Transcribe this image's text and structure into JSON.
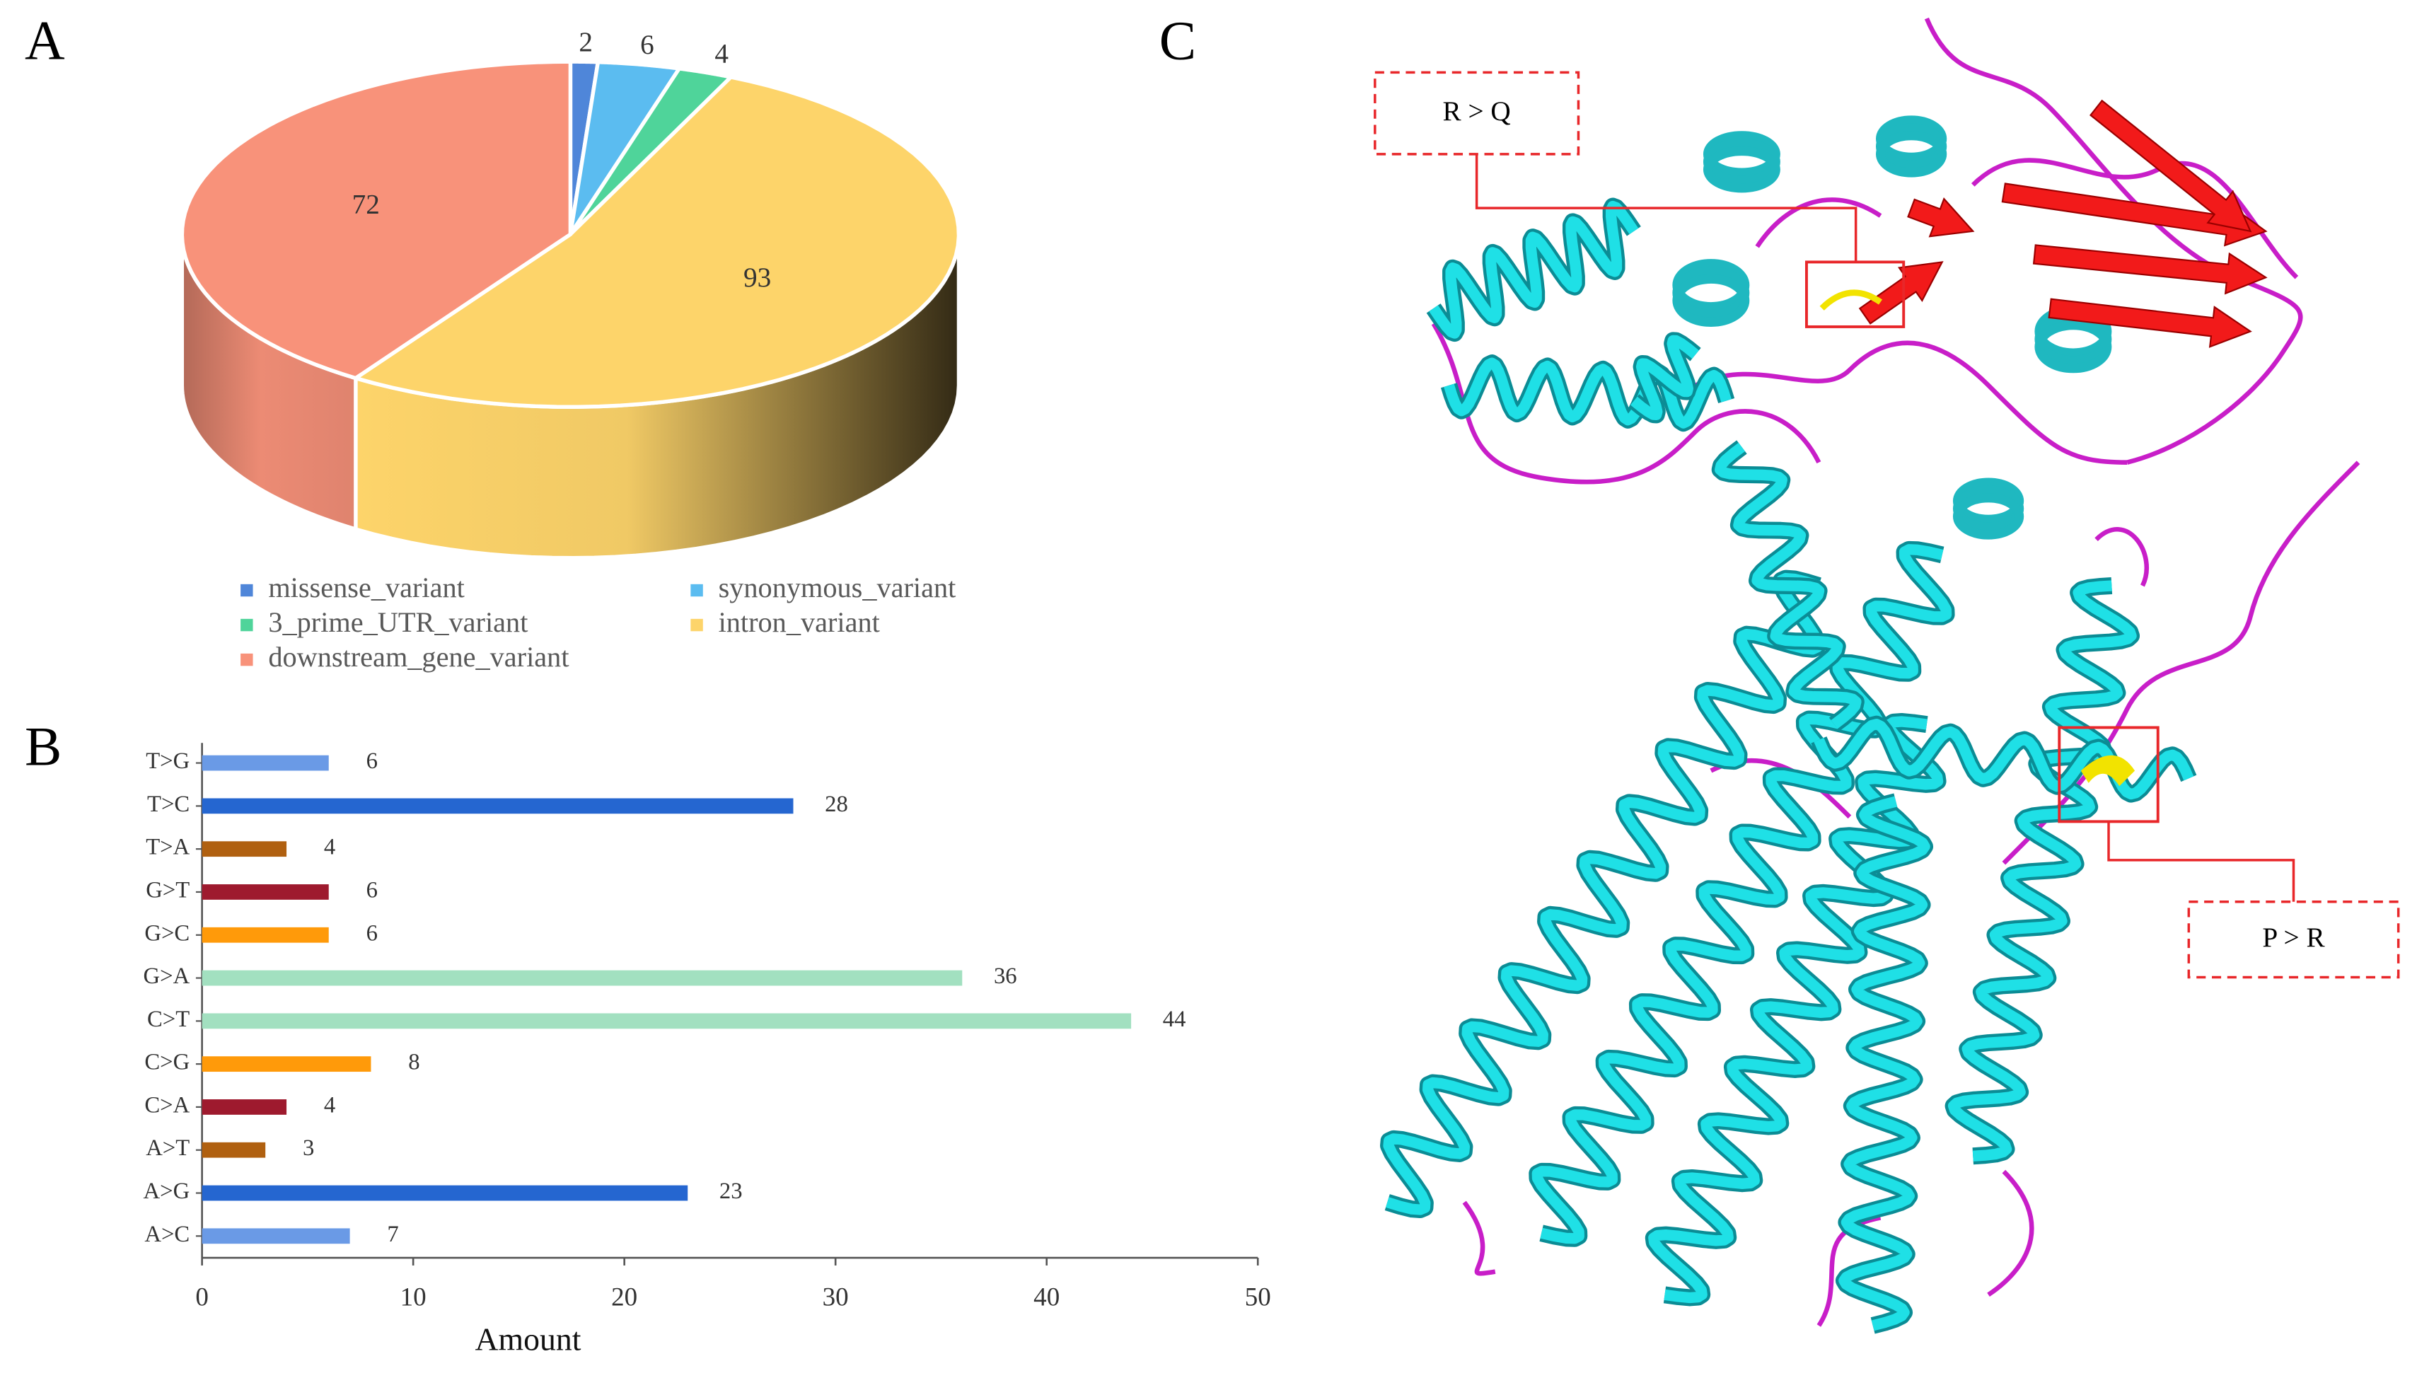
{
  "chart_data": [
    {
      "type": "pie",
      "panel": "A",
      "categories": [
        "missense_variant",
        "synonymous_variant",
        "3_prime_UTR_variant",
        "intron_variant",
        "downstream_gene_variant"
      ],
      "values": [
        2,
        6,
        4,
        93,
        72
      ],
      "colors": [
        "#4f86d9",
        "#5bbcf0",
        "#4fd49a",
        "#fdd46a",
        "#f8927a"
      ],
      "legend": "bottom"
    },
    {
      "type": "bar",
      "panel": "B",
      "orientation": "horizontal",
      "categories": [
        "T>G",
        "T>C",
        "T>A",
        "G>T",
        "G>C",
        "G>A",
        "C>T",
        "C>G",
        "C>A",
        "A>T",
        "A>G",
        "A>C"
      ],
      "values": [
        6,
        28,
        4,
        6,
        6,
        36,
        44,
        8,
        4,
        3,
        23,
        7
      ],
      "colors": [
        "#6a9ae6",
        "#2566d0",
        "#b06010",
        "#9e1a2e",
        "#ff9a0a",
        "#a2e0c0",
        "#a2e0c0",
        "#ff9a0a",
        "#9e1a2e",
        "#b06010",
        "#2566d0",
        "#6a9ae6"
      ],
      "xlim": [
        0,
        50
      ],
      "xticks": [
        0,
        10,
        20,
        30,
        40,
        50
      ],
      "xlabel": "Amount"
    }
  ],
  "structure": {
    "panel": "C",
    "annotations": [
      "R > Q",
      "P > R"
    ]
  }
}
